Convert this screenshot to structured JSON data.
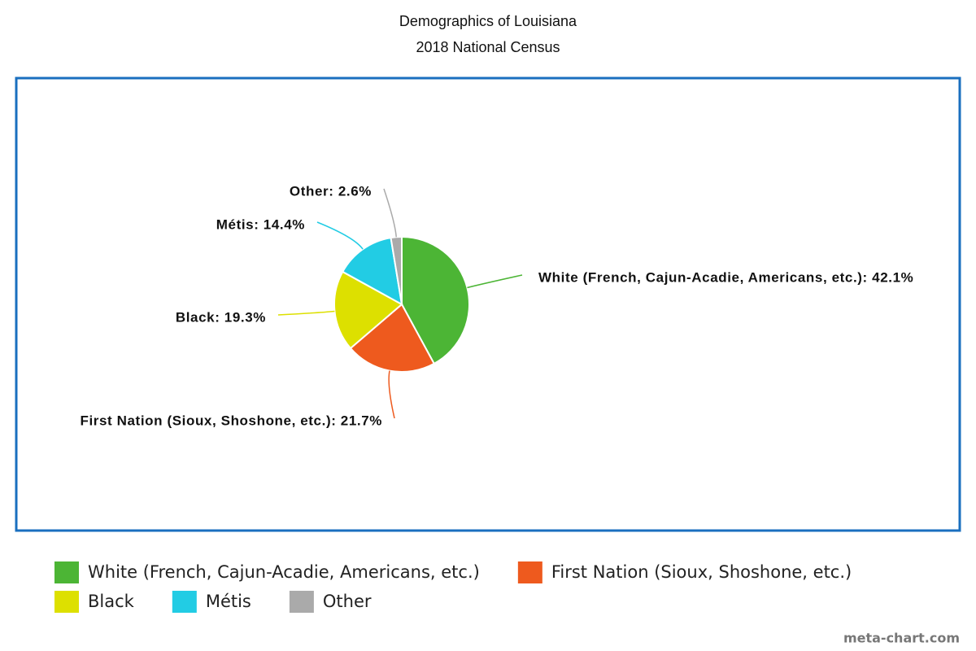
{
  "chart_data": {
    "type": "pie",
    "title": "Demographics of Louisiana",
    "subtitle": "2018 National Census",
    "categories": [
      "White (French, Cajun-Acadie, Americans, etc.)",
      "First Nation (Sioux, Shoshone, etc.)",
      "Black",
      "Métis",
      "Other"
    ],
    "values": [
      42.1,
      21.7,
      19.3,
      14.4,
      2.6
    ],
    "value_labels": [
      "White (French, Cajun-Acadie, Americans, etc.): 42.1%",
      "First Nation (Sioux, Shoshone, etc.): 21.7%",
      "Black: 19.3%",
      "Métis: 14.4%",
      "Other: 2.6%"
    ],
    "colors": [
      "#4cb535",
      "#ee5a1e",
      "#dde000",
      "#22cce4",
      "#aaaaaa"
    ],
    "legend": "bottom",
    "credit": "meta-chart.com"
  }
}
